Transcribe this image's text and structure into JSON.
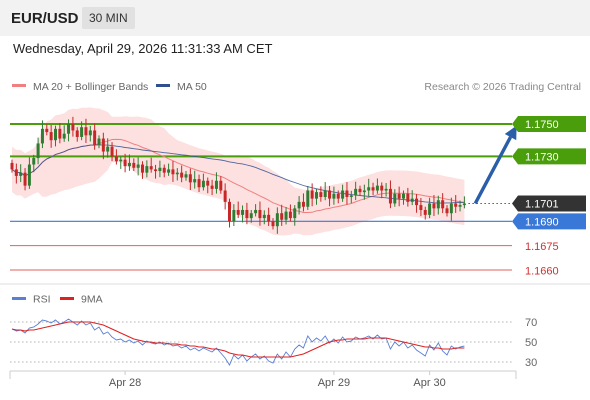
{
  "header": {
    "symbol": "EUR/USD",
    "timeframe": "30 MIN",
    "datetime": "Wednesday, April 29, 2026 11:31:33 AM CET"
  },
  "colors": {
    "up": "#2e7d32",
    "down": "#c62828",
    "bb_fill": "#fde0e0",
    "ma20": "#f08080",
    "ma50": "#2f4f8f",
    "green_level": "#4a9e0b",
    "blue_level": "#3a78d8",
    "red_level": "#e06060",
    "price_tag": "#333333",
    "arrow": "#2a5ea8",
    "rsi": "#5b7fd6",
    "rsi_ma": "#dd2222"
  },
  "chart_data": [
    {
      "type": "candlestick",
      "legend": [
        {
          "label": "MA 20 + Bollinger Bands",
          "color": "#f08080"
        },
        {
          "label": "MA 50",
          "color": "#2f4f8f"
        }
      ],
      "credit": "Research © 2026 Trading Central",
      "ylim": [
        1.1652,
        1.1766
      ],
      "x_labels": [
        {
          "label": "Apr 28",
          "index": 26
        },
        {
          "label": "Apr 29",
          "index": 74
        },
        {
          "label": "Apr 30",
          "index": 96
        }
      ],
      "levels": [
        {
          "value": 1.175,
          "label": "1.1750",
          "kind": "resistance"
        },
        {
          "value": 1.173,
          "label": "1.1730",
          "kind": "resistance"
        },
        {
          "value": 1.1701,
          "label": "1.1701",
          "kind": "last"
        },
        {
          "value": 1.169,
          "label": "1.1690",
          "kind": "pivot"
        },
        {
          "value": 1.1675,
          "label": "1.1675",
          "kind": "support"
        },
        {
          "value": 1.166,
          "label": "1.1660",
          "kind": "support"
        }
      ],
      "projection": {
        "from_index": 106.5,
        "from_value": 1.1701,
        "to_index": 116,
        "to_value": 1.1749
      },
      "close": [
        1.1722,
        1.1718,
        1.172,
        1.1712,
        1.1725,
        1.1729,
        1.1738,
        1.1747,
        1.1745,
        1.174,
        1.1747,
        1.1741,
        1.1744,
        1.175,
        1.1746,
        1.1742,
        1.1748,
        1.1743,
        1.1746,
        1.1737,
        1.1741,
        1.1733,
        1.1736,
        1.173,
        1.1727,
        1.1728,
        1.1724,
        1.1726,
        1.1723,
        1.1725,
        1.172,
        1.1724,
        1.1722,
        1.1721,
        1.1723,
        1.172,
        1.1722,
        1.1719,
        1.172,
        1.1717,
        1.1719,
        1.1714,
        1.1716,
        1.1711,
        1.1715,
        1.1712,
        1.171,
        1.1715,
        1.1709,
        1.1702,
        1.169,
        1.1697,
        1.1694,
        1.1697,
        1.1692,
        1.1695,
        1.1697,
        1.1692,
        1.1694,
        1.169,
        1.1687,
        1.1695,
        1.1691,
        1.1696,
        1.1692,
        1.1698,
        1.1702,
        1.1699,
        1.1709,
        1.1704,
        1.1708,
        1.1705,
        1.1709,
        1.1704,
        1.1707,
        1.1704,
        1.1709,
        1.1705,
        1.1706,
        1.171,
        1.1708,
        1.1709,
        1.1711,
        1.1709,
        1.1712,
        1.1709,
        1.171,
        1.1701,
        1.1707,
        1.1704,
        1.1707,
        1.1702,
        1.1704,
        1.17,
        1.1697,
        1.1694,
        1.1701,
        1.1698,
        1.1703,
        1.1698,
        1.1695,
        1.1701,
        1.1699,
        1.17,
        1.1701
      ]
    },
    {
      "type": "line",
      "legend": [
        {
          "label": "RSI",
          "color": "#5b7fd6"
        },
        {
          "label": "9MA",
          "color": "#dd2222"
        }
      ],
      "ylim": [
        22,
        80
      ],
      "ticks": [
        {
          "value": 70,
          "label": "70"
        },
        {
          "value": 50,
          "label": "50"
        },
        {
          "value": 30,
          "label": "30"
        }
      ],
      "series": [
        {
          "name": "RSI",
          "values": [
            63,
            61,
            62,
            59,
            64,
            65,
            68,
            72,
            71,
            69,
            72,
            68,
            70,
            73,
            70,
            67,
            71,
            67,
            69,
            62,
            65,
            58,
            60,
            55,
            52,
            53,
            50,
            52,
            49,
            51,
            47,
            51,
            49,
            48,
            50,
            47,
            49,
            46,
            47,
            44,
            46,
            42,
            44,
            41,
            44,
            42,
            40,
            44,
            39,
            34,
            27,
            37,
            33,
            37,
            31,
            35,
            38,
            33,
            36,
            31,
            29,
            38,
            33,
            40,
            35,
            43,
            47,
            44,
            56,
            50,
            54,
            51,
            56,
            49,
            53,
            49,
            55,
            50,
            51,
            55,
            53,
            54,
            56,
            53,
            57,
            53,
            54,
            43,
            50,
            46,
            50,
            44,
            47,
            42,
            39,
            36,
            47,
            42,
            49,
            41,
            37,
            46,
            43,
            45,
            46
          ]
        },
        {
          "name": "9MA",
          "values": [
            63,
            62,
            62,
            61,
            62,
            62,
            63,
            64,
            65,
            66,
            67,
            68,
            69,
            70,
            70,
            70,
            70,
            70,
            70,
            69,
            68,
            67,
            65,
            63,
            61,
            59,
            57,
            55,
            53,
            52,
            51,
            50,
            50,
            49,
            49,
            49,
            48,
            48,
            48,
            47,
            47,
            46,
            46,
            45,
            45,
            44,
            43,
            43,
            42,
            41,
            39,
            38,
            37,
            37,
            36,
            35,
            35,
            35,
            35,
            35,
            35,
            35,
            35,
            35,
            35,
            36,
            37,
            38,
            40,
            42,
            44,
            46,
            48,
            50,
            51,
            52,
            52,
            53,
            53,
            53,
            53,
            53,
            54,
            54,
            54,
            54,
            54,
            53,
            52,
            51,
            50,
            49,
            48,
            47,
            46,
            45,
            45,
            44,
            44,
            43,
            43,
            43,
            44,
            44,
            44
          ]
        }
      ]
    }
  ]
}
